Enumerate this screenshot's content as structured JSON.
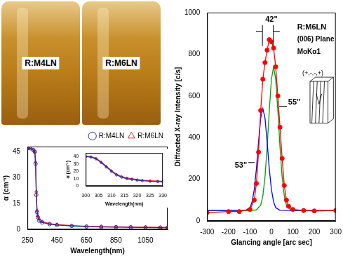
{
  "photos": [
    "R:M4LN",
    "R:M6LN"
  ],
  "chart_data": [
    {
      "type": "line",
      "x_label": "Wavelength(nm)",
      "y_label": "α (cm⁻¹)",
      "xlim": [
        250,
        1200
      ],
      "xticks": [
        250,
        450,
        650,
        850,
        1050
      ],
      "ylim": [
        0,
        48
      ],
      "yticks": [
        0,
        15,
        30,
        45
      ],
      "grid": false,
      "legend": "upper right",
      "x": [
        250,
        270,
        290,
        300,
        305,
        310,
        315,
        320,
        330,
        350,
        400,
        450,
        550,
        650,
        750,
        850,
        950,
        1050,
        1150,
        1200
      ],
      "series": [
        {
          "name": "R:M4LN",
          "color": "#2b2b9a",
          "marker": "circle",
          "values": [
            47,
            47,
            46,
            45,
            38,
            20,
            10,
            7,
            5,
            4,
            3,
            2.5,
            2,
            1.6,
            1.4,
            1.3,
            1.2,
            1.1,
            1.0,
            1.0
          ]
        },
        {
          "name": "R:M6LN",
          "color": "#e8242a",
          "marker": "triangle",
          "values": [
            47,
            47,
            46,
            45,
            39,
            22,
            11,
            8,
            6,
            4.5,
            3.3,
            2.8,
            2.2,
            1.8,
            1.6,
            1.5,
            1.4,
            1.3,
            1.2,
            1.2
          ]
        }
      ]
    },
    {
      "type": "line",
      "x_label": "Wavelength(nm)",
      "y_label": "α (cm⁻¹)",
      "xlim": [
        300,
        330
      ],
      "xticks": [
        300,
        305,
        310,
        315,
        320,
        325,
        330
      ],
      "ylim": [
        0,
        45
      ],
      "yticks": [
        0,
        10,
        20,
        30,
        40
      ],
      "grid": false,
      "x": [
        300,
        302,
        304,
        306,
        308,
        310,
        312,
        314,
        316,
        318,
        320,
        322,
        325,
        328,
        330
      ],
      "series": [
        {
          "color": "#2b2b9a",
          "marker": "circle",
          "values": [
            40,
            39.5,
            37,
            32,
            26,
            20,
            15,
            12,
            10,
            9,
            8,
            7.3,
            6.5,
            6,
            5.8
          ]
        },
        {
          "color": "#e8242a",
          "marker": "triangle",
          "values": [
            41,
            40,
            38,
            33,
            27,
            21,
            16,
            13,
            11,
            9.8,
            8.8,
            8,
            7.3,
            6.8,
            6.6
          ]
        }
      ]
    },
    {
      "type": "line",
      "x_label": "Glancing angle [arc sec]",
      "y_label": "Diffracted X-ray Intensity [c/s]",
      "xlim": [
        -300,
        300
      ],
      "xticks": [
        -300,
        -200,
        -100,
        0,
        100,
        200,
        300
      ],
      "ylim": [
        0,
        1000
      ],
      "yticks": [
        0,
        200,
        400,
        600,
        800,
        1000
      ],
      "grid": false,
      "annotations": [
        "42\"",
        "53\"",
        "55\"",
        "R:M6LN",
        "(006) Plane",
        "MoKα1",
        "(+,-,-,+)"
      ],
      "series": [
        {
          "color": "#ff0000",
          "marker": "circle",
          "line_style": "solid",
          "x": [
            -300,
            -200,
            -150,
            -100,
            -80,
            -70,
            -60,
            -50,
            -40,
            -30,
            -20,
            -10,
            0,
            10,
            20,
            30,
            40,
            50,
            60,
            70,
            80,
            100,
            150,
            200,
            300
          ],
          "values": [
            40,
            45,
            45,
            55,
            100,
            180,
            330,
            530,
            680,
            760,
            820,
            870,
            860,
            830,
            740,
            600,
            450,
            300,
            170,
            100,
            70,
            55,
            50,
            48,
            50
          ]
        },
        {
          "color": "#0000ff",
          "marker": "none",
          "line_style": "solid",
          "x": [
            -300,
            -150,
            -120,
            -100,
            -90,
            -80,
            -70,
            -60,
            -50,
            -40,
            -30,
            -20,
            -10,
            0,
            10,
            20,
            40,
            100,
            300
          ],
          "values": [
            50,
            50,
            51,
            64,
            92,
            151,
            251,
            380,
            494,
            540,
            494,
            380,
            251,
            151,
            92,
            64,
            51,
            50,
            50
          ]
        },
        {
          "color": "#00a000",
          "marker": "none",
          "line_style": "solid",
          "x": [
            -300,
            -100,
            -70,
            -50,
            -40,
            -30,
            -20,
            -10,
            0,
            10,
            20,
            30,
            40,
            50,
            60,
            70,
            90,
            150,
            300
          ],
          "values": [
            50,
            50,
            53,
            76,
            120,
            210,
            354,
            529,
            680,
            740,
            680,
            529,
            354,
            210,
            120,
            76,
            53,
            50,
            50
          ]
        }
      ]
    }
  ]
}
